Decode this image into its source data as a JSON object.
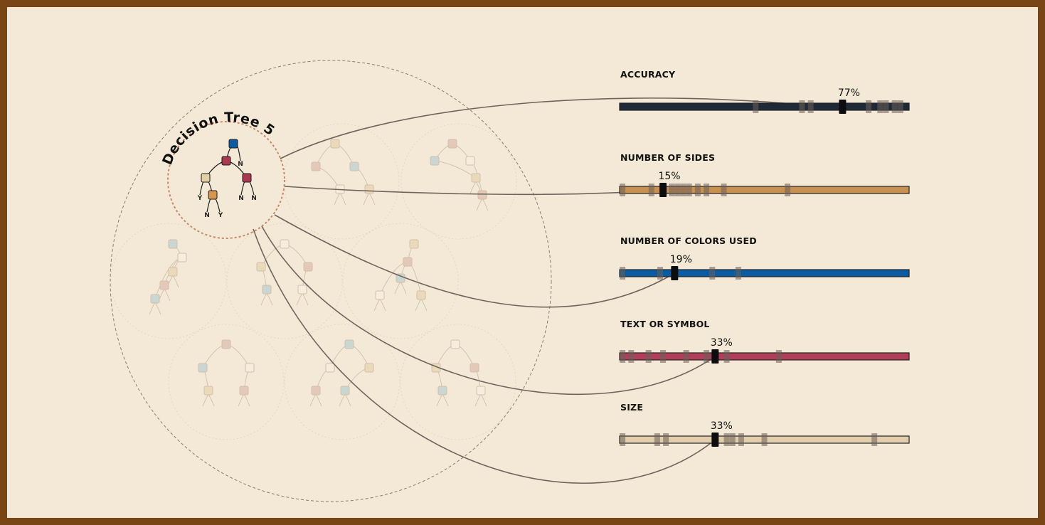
{
  "colors": {
    "frame": "#7a4514",
    "background": "#f4e9d6",
    "accuracy_bar": "#1f2a38",
    "sides_bar": "#c9914f",
    "colors_bar": "#0a5ba1",
    "text_symbol_bar": "#b0405a",
    "size_bar": "#e2ceac",
    "node_blue": "#0a5ba1",
    "node_red": "#a8394f",
    "node_tan": "#e3cfa4",
    "node_orange": "#d6964f",
    "node_light_blue": "#a9c8cf",
    "node_pink": "#d8aea0",
    "node_white": "#f8f1e4"
  },
  "highlighted_tree": {
    "title": "Decision Tree 5",
    "leaf_labels": [
      "Y",
      "N",
      "N",
      "N",
      "N",
      "Y"
    ]
  },
  "metrics": [
    {
      "label": "ACCURACY",
      "value": 77,
      "value_label": "77%"
    },
    {
      "label": "NUMBER OF SIDES",
      "value": 15,
      "value_label": "15%"
    },
    {
      "label": "NUMBER OF COLORS USED",
      "value": 19,
      "value_label": "19%"
    },
    {
      "label": "TEXT OR SYMBOL",
      "value": 33,
      "value_label": "33%"
    },
    {
      "label": "SIZE",
      "value": 33,
      "value_label": "33%"
    }
  ]
}
